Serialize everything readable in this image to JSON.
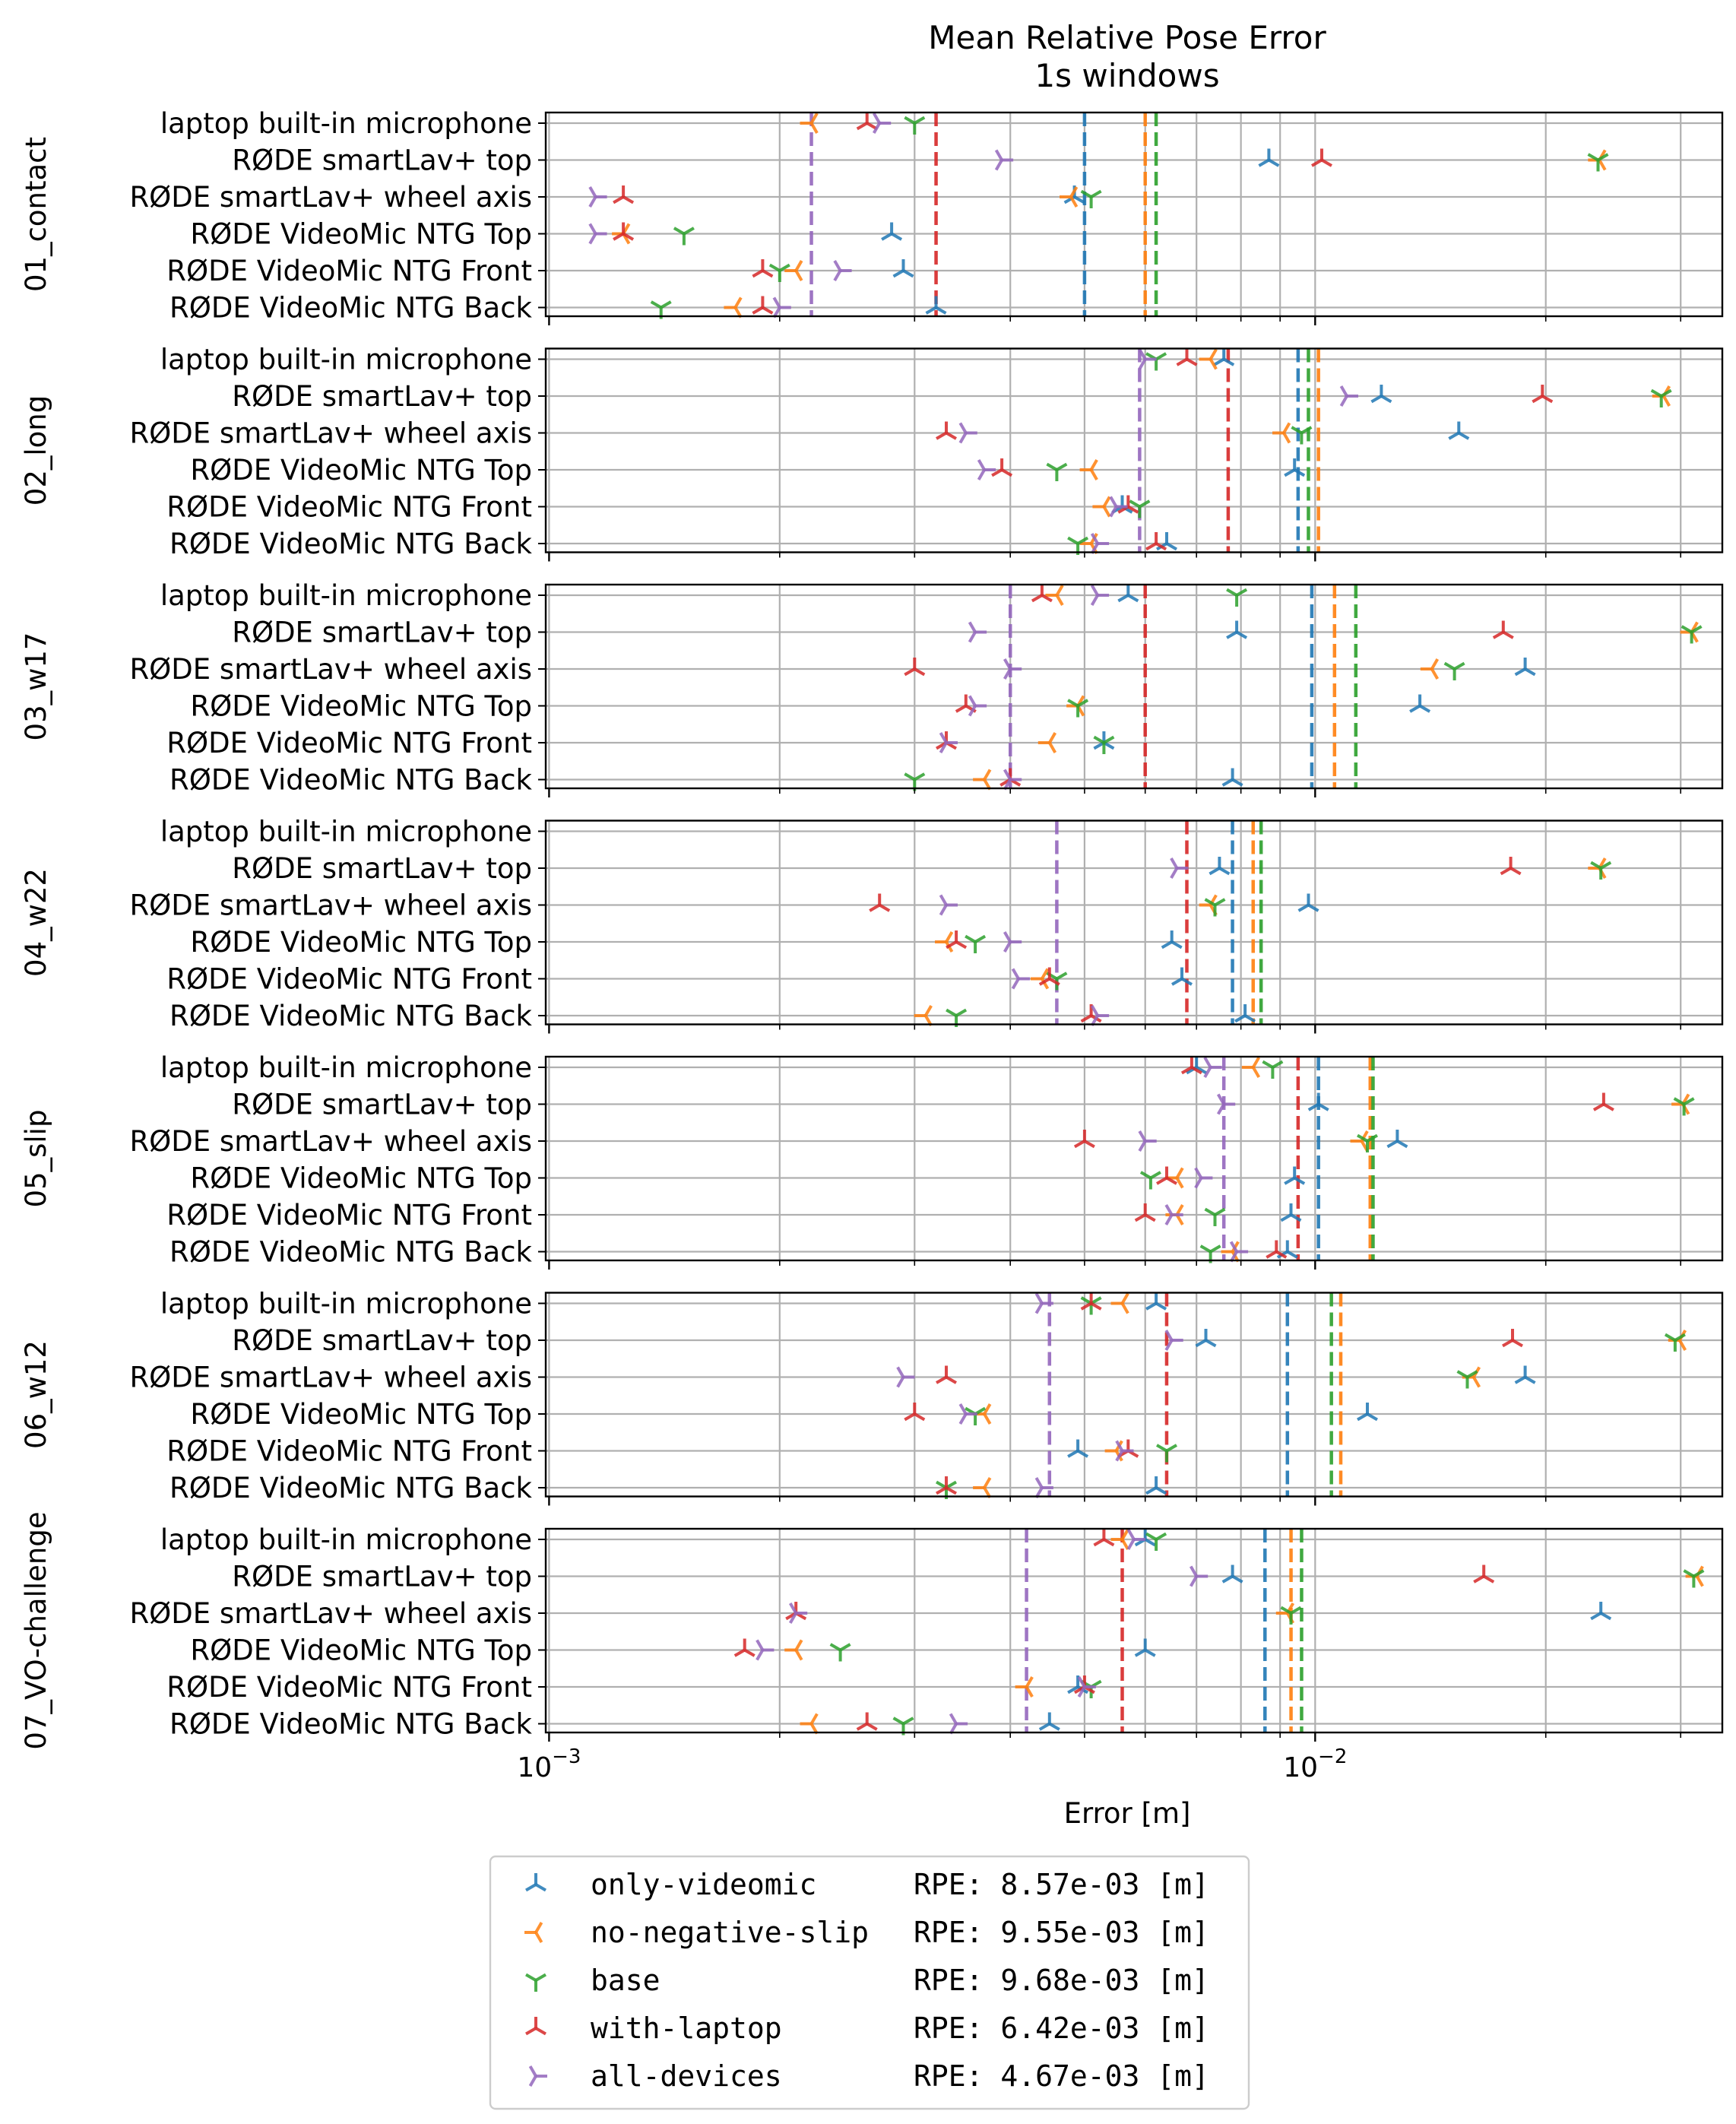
{
  "chart_data": {
    "type": "scatter",
    "title": "Mean Relative Pose Error",
    "subtitle": "1s windows",
    "xlabel": "Error [m]",
    "x_scale": "log",
    "xlim": [
      0.00099,
      0.034
    ],
    "x_ticks": [
      {
        "value": 0.001,
        "base": "10",
        "exp": "−3"
      },
      {
        "value": 0.01,
        "base": "10",
        "exp": "−2"
      }
    ],
    "microphones": [
      "laptop built-in microphone",
      "RØDE smartLav+ top",
      "RØDE smartLav+ wheel axis",
      "RØDE VideoMic NTG Top",
      "RØDE VideoMic NTG Front",
      "RØDE VideoMic NTG Back"
    ],
    "series": [
      {
        "name": "only-videomic",
        "color": "#1f77b4",
        "rpe_label": "RPE: 8.57e-03 [m]"
      },
      {
        "name": "no-negative-slip",
        "color": "#ff7f0e",
        "rpe_label": "RPE: 9.55e-03 [m]"
      },
      {
        "name": "base",
        "color": "#2ca02c",
        "rpe_label": "RPE: 9.68e-03 [m]"
      },
      {
        "name": "with-laptop",
        "color": "#d62728",
        "rpe_label": "RPE: 6.42e-03 [m]"
      },
      {
        "name": "all-devices",
        "color": "#9467bd",
        "rpe_label": "RPE: 4.67e-03 [m]"
      }
    ],
    "groups": [
      {
        "name": "01_contact",
        "means": [
          0.005,
          0.006,
          0.0062,
          0.0032,
          0.0022
        ],
        "values": [
          [
            null,
            0.0087,
            0.00485,
            0.0028,
            0.0029,
            0.0032
          ],
          [
            0.0022,
            0.0235,
            0.0048,
            0.00125,
            0.0021,
            0.00175
          ],
          [
            0.003,
            0.0234,
            0.0051,
            0.0015,
            0.002,
            0.0014
          ],
          [
            0.0026,
            0.0102,
            0.00125,
            0.00125,
            0.0019,
            0.0019
          ],
          [
            0.0027,
            0.0039,
            0.00115,
            0.00115,
            0.0024,
            0.002
          ]
        ]
      },
      {
        "name": "02_long",
        "means": [
          0.0095,
          0.0101,
          0.0098,
          0.0077,
          0.0059
        ],
        "values": [
          [
            0.0076,
            0.0122,
            0.0154,
            0.0094,
            0.0056,
            0.0064
          ],
          [
            0.0073,
            0.0285,
            0.0091,
            0.0051,
            0.0053,
            0.0051
          ],
          [
            0.0062,
            0.0283,
            0.0096,
            0.0046,
            0.0059,
            0.0049
          ],
          [
            0.0068,
            0.0198,
            0.0033,
            0.0039,
            0.0057,
            0.0062
          ],
          [
            0.006,
            0.011,
            0.0035,
            0.0037,
            0.0055,
            0.0052
          ]
        ]
      },
      {
        "name": "03_w17",
        "means": [
          0.0099,
          0.0106,
          0.0113,
          0.006,
          0.004
        ],
        "values": [
          [
            0.0057,
            0.0079,
            0.0188,
            0.0137,
            0.0053,
            0.0078
          ],
          [
            0.0046,
            0.031,
            0.0142,
            0.0049,
            0.0045,
            0.0037
          ],
          [
            0.0079,
            0.031,
            0.0152,
            0.0049,
            0.0053,
            0.003
          ],
          [
            0.0044,
            0.0176,
            0.003,
            0.0035,
            0.0033,
            0.004
          ],
          [
            0.0052,
            0.0036,
            0.004,
            0.0036,
            0.0033,
            0.004
          ]
        ]
      },
      {
        "name": "04_w22",
        "means": [
          0.0078,
          0.0083,
          0.0085,
          0.0068,
          0.0046
        ],
        "values": [
          [
            null,
            0.0075,
            0.0098,
            0.0065,
            0.0067,
            0.0081
          ],
          [
            null,
            0.0235,
            0.0073,
            0.0033,
            0.0044,
            0.0031
          ],
          [
            null,
            0.0236,
            0.0074,
            0.0036,
            0.0046,
            0.0034
          ],
          [
            null,
            0.018,
            0.0027,
            0.0034,
            0.0045,
            0.0051
          ],
          [
            null,
            0.0066,
            0.0033,
            0.004,
            0.0041,
            0.0052
          ]
        ]
      },
      {
        "name": "05_slip",
        "means": [
          0.0101,
          0.0118,
          0.0119,
          0.0095,
          0.0076
        ],
        "values": [
          [
            0.007,
            0.0101,
            0.0128,
            0.0094,
            0.0093,
            0.0092
          ],
          [
            0.0083,
            0.0302,
            0.0115,
            0.0066,
            0.0066,
            0.0078
          ],
          [
            0.0088,
            0.0303,
            0.0117,
            0.0061,
            0.0074,
            0.0073
          ],
          [
            0.0069,
            0.0238,
            0.005,
            0.0064,
            0.006,
            0.0089
          ],
          [
            0.0073,
            0.0076,
            0.006,
            0.0071,
            0.0065,
            0.0079
          ]
        ]
      },
      {
        "name": "06_w12",
        "means": [
          0.0092,
          0.0108,
          0.0105,
          0.0064,
          0.0045
        ],
        "values": [
          [
            0.0062,
            0.0072,
            0.0188,
            0.0117,
            0.0049,
            0.0062
          ],
          [
            0.0056,
            0.0299,
            0.0161,
            0.0037,
            0.0055,
            0.0037
          ],
          [
            0.0051,
            0.0295,
            0.0158,
            0.0036,
            0.0064,
            0.0033
          ],
          [
            0.0051,
            0.0181,
            0.0033,
            0.003,
            0.0057,
            0.0033
          ],
          [
            0.0044,
            0.0065,
            0.0029,
            0.0035,
            0.0056,
            0.0044
          ]
        ]
      },
      {
        "name": "07_VO-challenge",
        "means": [
          0.0086,
          0.0093,
          0.0096,
          0.0056,
          0.0042
        ],
        "values": [
          [
            0.006,
            0.0078,
            0.0236,
            0.006,
            0.0049,
            0.0045
          ],
          [
            0.0056,
            0.0315,
            0.0092,
            0.0021,
            0.0042,
            0.0022
          ],
          [
            0.0062,
            0.0312,
            0.0093,
            0.0024,
            0.0051,
            0.0029
          ],
          [
            0.0053,
            0.0166,
            0.0021,
            0.0018,
            0.005,
            0.0026
          ],
          [
            0.0058,
            0.007,
            0.0021,
            0.0019,
            0.005,
            0.0034
          ]
        ]
      }
    ],
    "grid": true,
    "legend_position": "bottom-center"
  }
}
